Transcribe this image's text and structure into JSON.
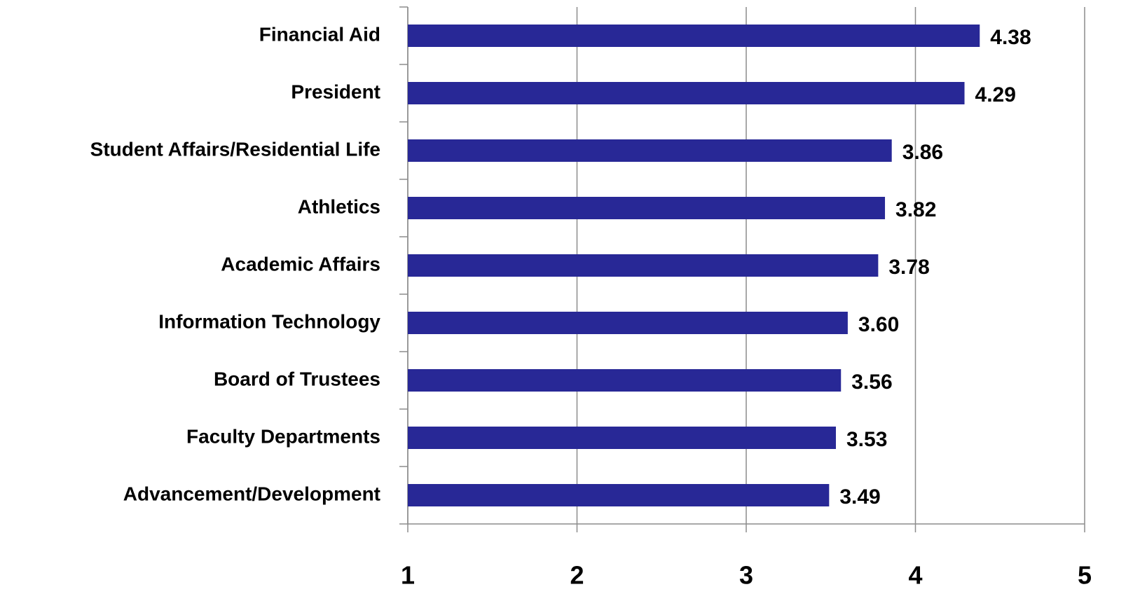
{
  "chart_data": {
    "type": "bar",
    "orientation": "horizontal",
    "categories": [
      "Financial Aid",
      "President",
      "Student Affairs/Residential Life",
      "Athletics",
      "Academic Affairs",
      "Information Technology",
      "Board of Trustees",
      "Faculty Departments",
      "Advancement/Development"
    ],
    "values": [
      4.38,
      4.29,
      3.86,
      3.82,
      3.78,
      3.6,
      3.56,
      3.53,
      3.49
    ],
    "value_labels": [
      "4.38",
      "4.29",
      "3.86",
      "3.82",
      "3.78",
      "3.60",
      "3.56",
      "3.53",
      "3.49"
    ],
    "color": "#282896",
    "xlim": [
      1,
      5
    ],
    "xticks": [
      1,
      2,
      3,
      4,
      5
    ],
    "grid": true
  }
}
